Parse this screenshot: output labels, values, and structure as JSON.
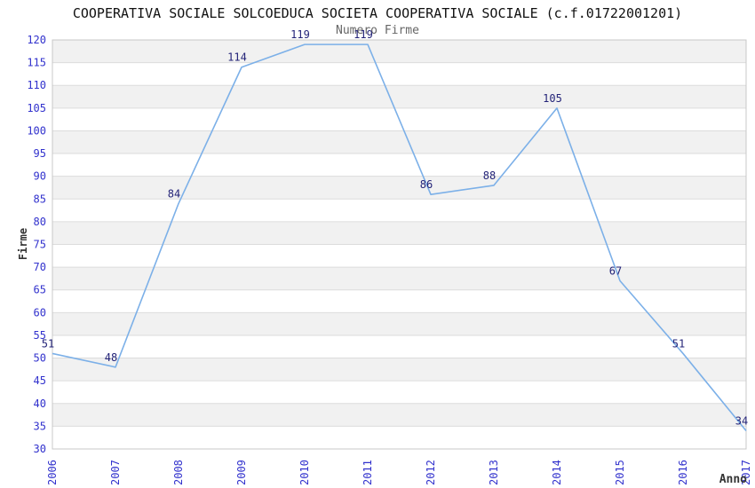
{
  "chart_data": {
    "type": "line",
    "title": "COOPERATIVA SOCIALE SOLCOEDUCA SOCIETA COOPERATIVA SOCIALE (c.f.01722001201)",
    "subtitle": "Numero Firme",
    "xlabel": "Anno",
    "ylabel": "Firme",
    "categories": [
      "2006",
      "2007",
      "2008",
      "2009",
      "2010",
      "2011",
      "2012",
      "2013",
      "2014",
      "2015",
      "2016",
      "2017"
    ],
    "values": [
      51,
      48,
      84,
      114,
      119,
      119,
      86,
      88,
      105,
      67,
      51,
      34
    ],
    "ylim": [
      30,
      120
    ],
    "ytick_step": 5,
    "grid": "horizontal-bands-alternating",
    "legend": "none",
    "colors": {
      "line": "#7CB0E8",
      "tick_label": "#3232CD",
      "data_label": "#232378",
      "band": "#F1F1F1",
      "gridline": "#DCDCDC",
      "plot_border": "#C8C8C8",
      "title": "#111111",
      "subtitle": "#666666",
      "axis_label": "#333333",
      "background": "#FFFFFF"
    }
  }
}
